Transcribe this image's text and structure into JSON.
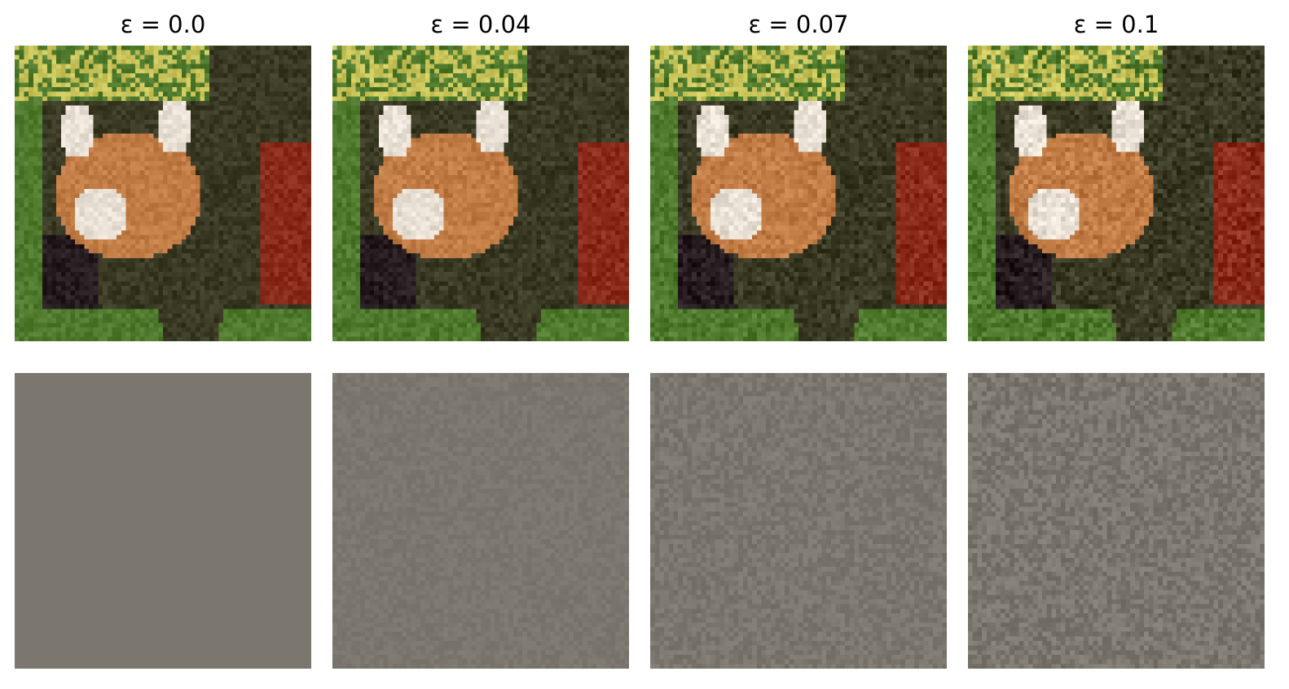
{
  "figure": {
    "panels": [
      {
        "epsilon_label": "ε = 0.0",
        "epsilon": 0.0
      },
      {
        "epsilon_label": "ε = 0.04",
        "epsilon": 0.04
      },
      {
        "epsilon_label": "ε = 0.07",
        "epsilon": 0.07
      },
      {
        "epsilon_label": "ε = 0.1",
        "epsilon": 0.1
      }
    ],
    "rows": [
      "red-panda-photo",
      "perturbation-noise"
    ],
    "colors": {
      "noise_base": "#7b776e",
      "fur_orange": "#c07a44",
      "fur_red": "#8a2a1a",
      "leaves_yellow": "#c8c45a",
      "background_green": "#4f7a2e",
      "tree_bark": "#3a3a24",
      "face_white": "#e8e0d4"
    }
  }
}
